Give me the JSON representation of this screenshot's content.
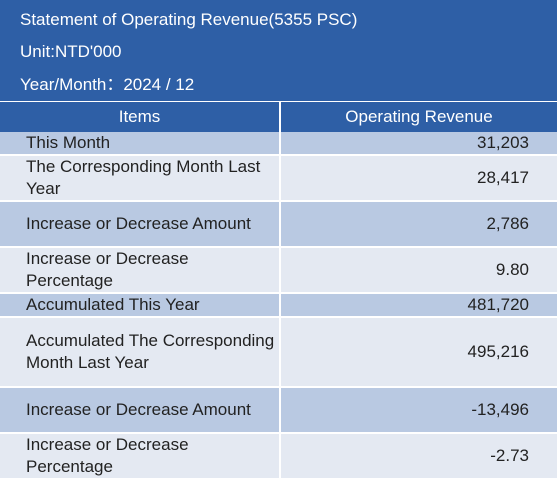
{
  "header": {
    "title": "Statement of Operating Revenue(5355 PSC)",
    "unit": "Unit:NTD'000",
    "year_month": "Year/Month：2024 / 12"
  },
  "table": {
    "columns": [
      "Items",
      "Operating Revenue"
    ],
    "rows": [
      {
        "item": "This Month",
        "value": "31,203"
      },
      {
        "item": "The Corresponding Month Last Year",
        "value": "28,417"
      },
      {
        "item": "Increase or Decrease Amount",
        "value": "2,786"
      },
      {
        "item": "Increase or Decrease Percentage",
        "value": "9.80"
      },
      {
        "item": "Accumulated This Year",
        "value": "481,720"
      },
      {
        "item": "Accumulated The Corresponding Month Last Year",
        "value": "495,216"
      },
      {
        "item": "Increase or Decrease Amount",
        "value": "-13,496"
      },
      {
        "item": "Increase or Decrease Percentage",
        "value": "-2.73"
      }
    ]
  },
  "colors": {
    "header_bg": "#2e5fa6",
    "row_dark": "#b9c9e2",
    "row_light": "#e4e9f2"
  }
}
